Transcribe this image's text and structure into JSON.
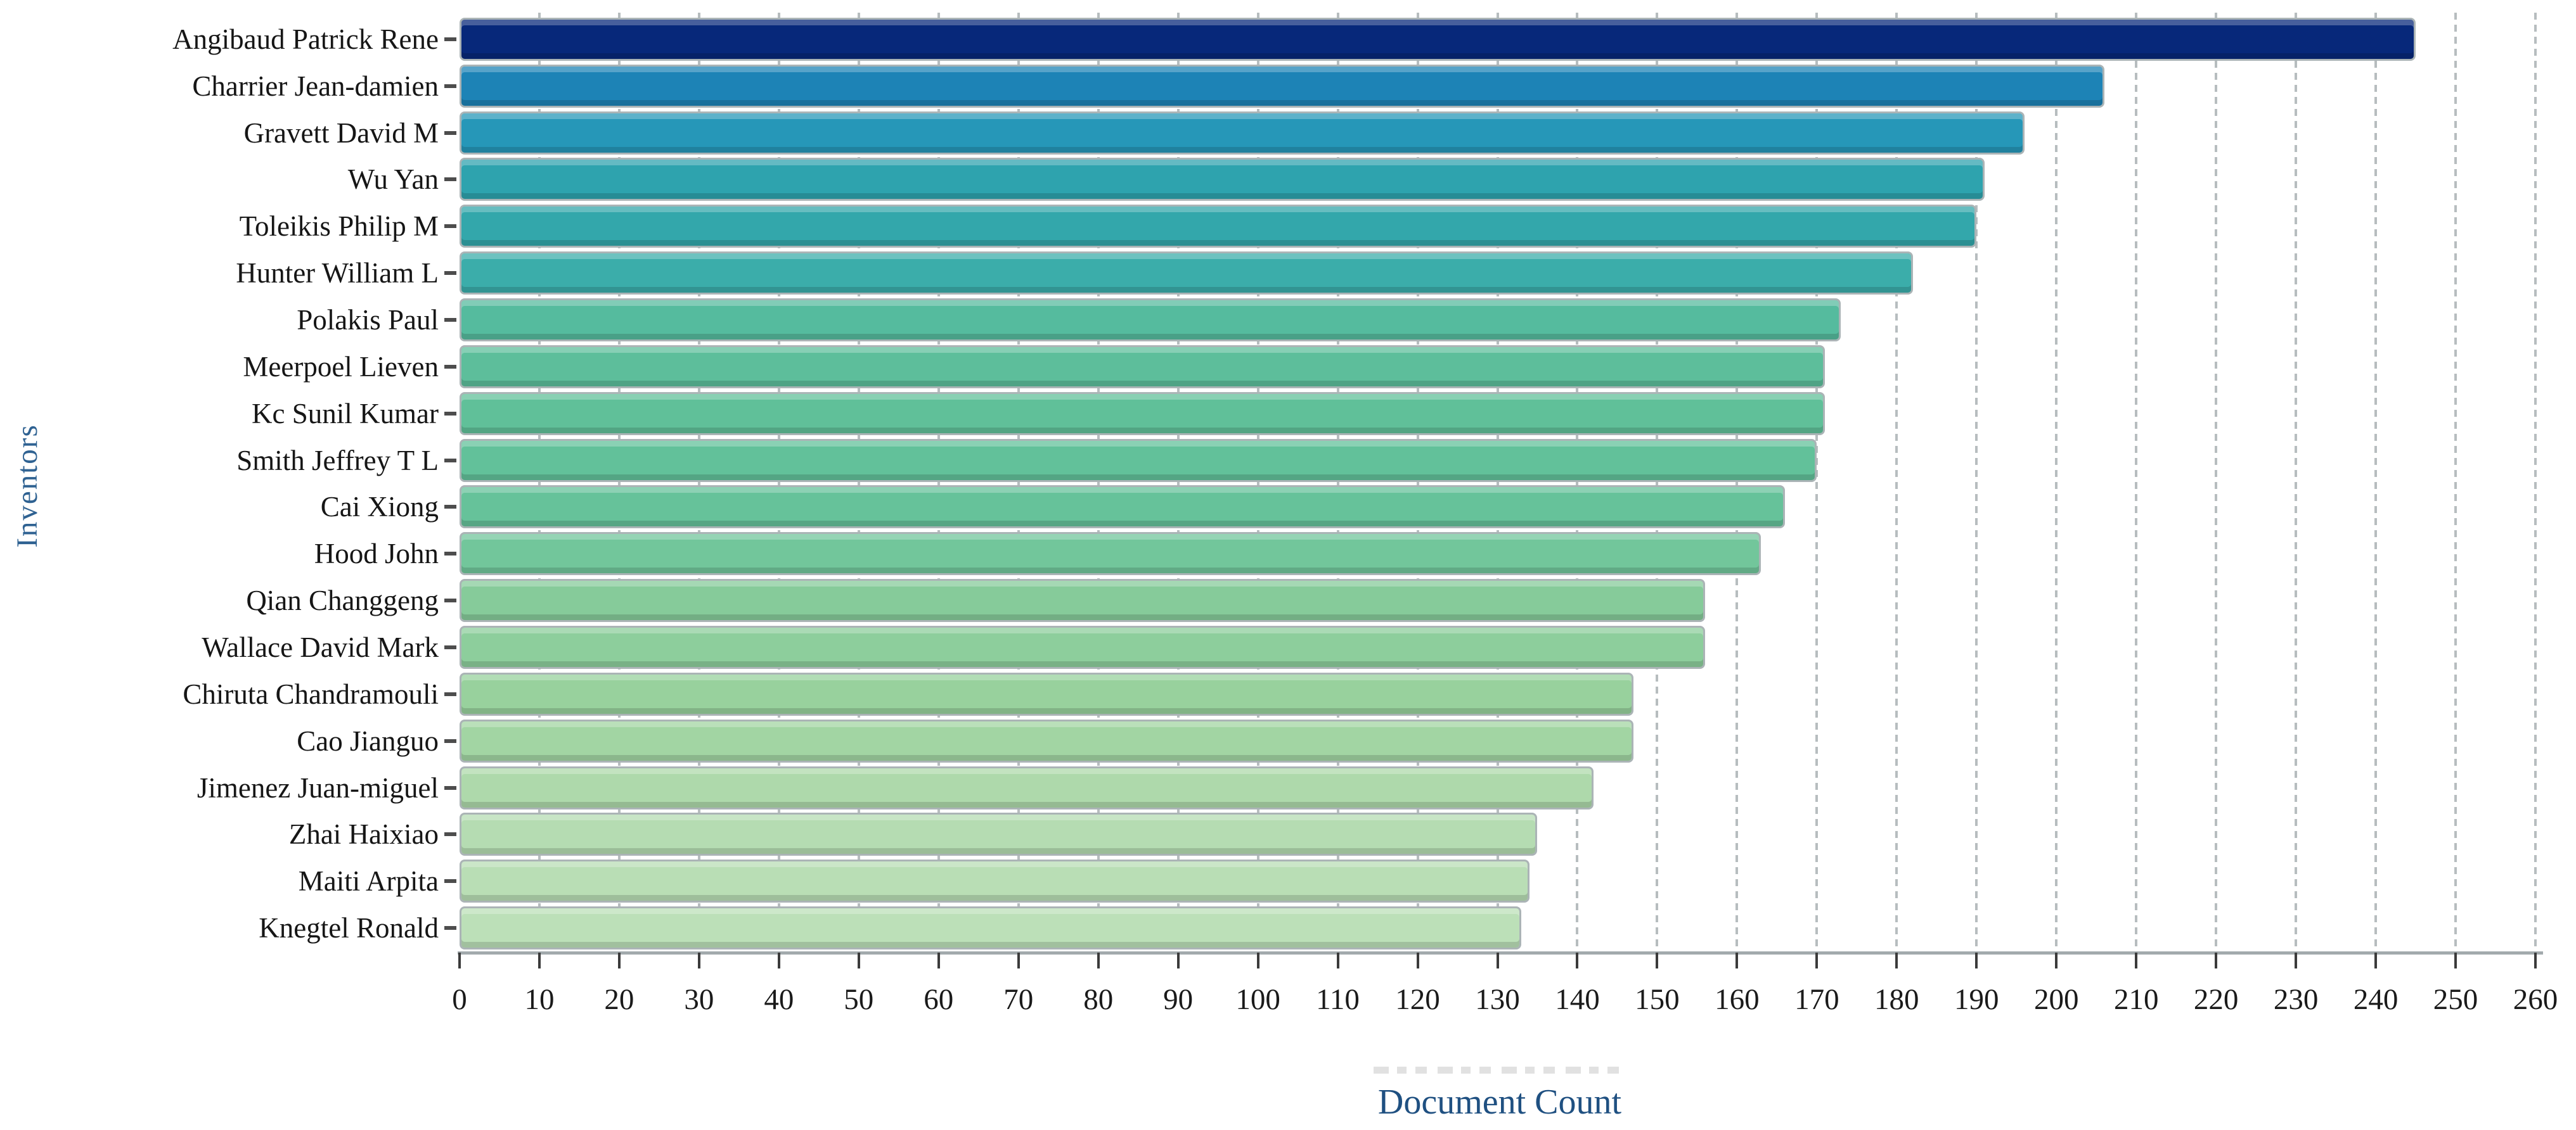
{
  "chart_data": {
    "type": "bar",
    "orientation": "horizontal",
    "title": "",
    "xlabel": "Document Count",
    "ylabel": "Inventors",
    "xlim": [
      0,
      260
    ],
    "x_ticks": [
      0,
      10,
      20,
      30,
      40,
      50,
      60,
      70,
      80,
      90,
      100,
      110,
      120,
      130,
      140,
      150,
      160,
      170,
      180,
      190,
      200,
      210,
      220,
      230,
      240,
      250,
      260
    ],
    "grid": "vertical-dashed",
    "legend": "none",
    "categories": [
      "Angibaud Patrick Rene",
      "Charrier Jean-damien",
      "Gravett David M",
      "Wu Yan",
      "Toleikis Philip M",
      "Hunter William L",
      "Polakis Paul",
      "Meerpoel Lieven",
      "Kc Sunil Kumar",
      "Smith Jeffrey T L",
      "Cai Xiong",
      "Hood John",
      "Qian Changgeng",
      "Wallace David Mark",
      "Chiruta Chandramouli",
      "Cao Jianguo",
      "Jimenez Juan-miguel",
      "Zhai Haixiao",
      "Maiti Arpita",
      "Knegtel Ronald"
    ],
    "values": [
      245,
      206,
      196,
      191,
      190,
      182,
      173,
      171,
      171,
      170,
      166,
      163,
      156,
      156,
      147,
      147,
      142,
      135,
      134,
      133
    ],
    "bar_colors": [
      "#07287a",
      "#1d83b6",
      "#2697b8",
      "#2ea3ae",
      "#33a7ab",
      "#3badaa",
      "#55bb9e",
      "#5dbe9b",
      "#60c099",
      "#62c19a",
      "#66c29a",
      "#72c69b",
      "#86cb9a",
      "#8dce9c",
      "#98d19d",
      "#a2d5a3",
      "#aed9ab",
      "#b5dcb2",
      "#b9deb5",
      "#bce0b8"
    ],
    "colors": {
      "xlabel_text": "#1f5081",
      "ylabel_text": "#2f6292",
      "tick_label_text": "#1a1a1a",
      "axis_line": "#a2aaad",
      "gridline": "#b7bdbf",
      "bar_border": "#abb4b6"
    }
  }
}
